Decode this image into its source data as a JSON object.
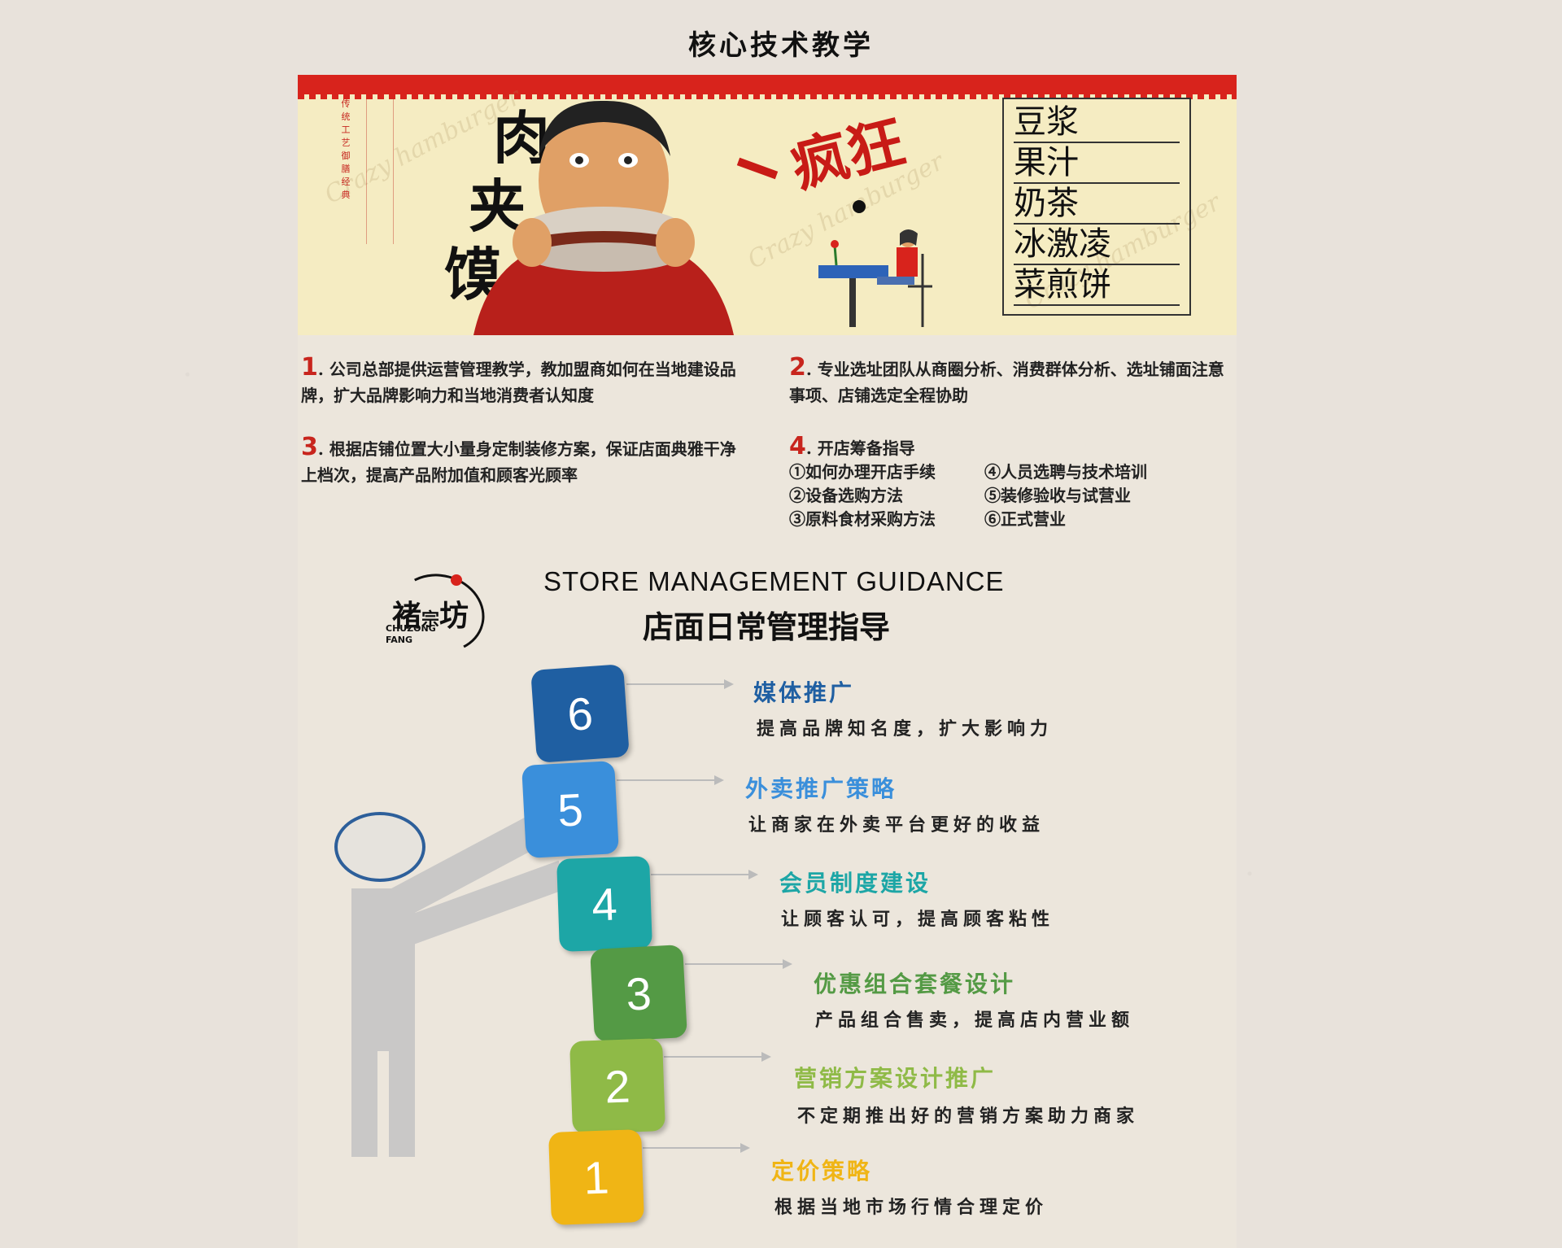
{
  "page_title": "核心技术教学",
  "banner": {
    "vertical_red_text": "传统工艺 御膳经典",
    "product_title": [
      "肉",
      "夹",
      "馍"
    ],
    "crazy_text": "疯狂",
    "watermark": "Crazy hamburger",
    "menu": [
      "豆浆",
      "果汁",
      "奶茶",
      "冰激凌",
      "菜煎饼"
    ]
  },
  "info": [
    {
      "num": "1",
      "text": ". 公司总部提供运营管理教学，教加盟商如何在当地建设品牌，扩大品牌影响力和当地消费者认知度"
    },
    {
      "num": "2",
      "text": ". 专业选址团队从商圈分析、消费群体分析、选址铺面注意事项、店铺选定全程协助"
    },
    {
      "num": "3",
      "text": ". 根据店铺位置大小量身定制装修方案，保证店面典雅干净上档次，提高产品附加值和顾客光顾率"
    },
    {
      "num": "4",
      "text": ". 开店筹备指导",
      "steps": [
        "①如何办理开店手续",
        "④人员选聘与技术培训",
        "②设备选购方法",
        "⑤装修验收与试营业",
        "③原料食材采购方法",
        "⑥正式营业"
      ]
    }
  ],
  "logo": {
    "cn_1": "褚",
    "cn_2": "宗",
    "cn_3": "坊",
    "en_1": "CHUZONG",
    "en_2": "FANG"
  },
  "guidance": {
    "title_en": "STORE  MANAGEMENT  GUIDANCE",
    "title_cn": "店面日常管理指导",
    "steps": [
      {
        "num": "6",
        "title": "媒体推广",
        "desc": "提高品牌知名度，扩大影响力",
        "color": "#1f5fa2"
      },
      {
        "num": "5",
        "title": "外卖推广策略",
        "desc": "让商家在外卖平台更好的收益",
        "color": "#3a8fdb"
      },
      {
        "num": "4",
        "title": "会员制度建设",
        "desc": "让顾客认可，提高顾客粘性",
        "color": "#1da6a6"
      },
      {
        "num": "3",
        "title": "优惠组合套餐设计",
        "desc": "产品组合售卖，提高店内营业额",
        "color": "#549a45"
      },
      {
        "num": "2",
        "title": "营销方案设计推广",
        "desc": "不定期推出好的营销方案助力商家",
        "color": "#8fba47"
      },
      {
        "num": "1",
        "title": "定价策略",
        "desc": "根据当地市场行情合理定价",
        "color": "#f0b515"
      }
    ]
  }
}
